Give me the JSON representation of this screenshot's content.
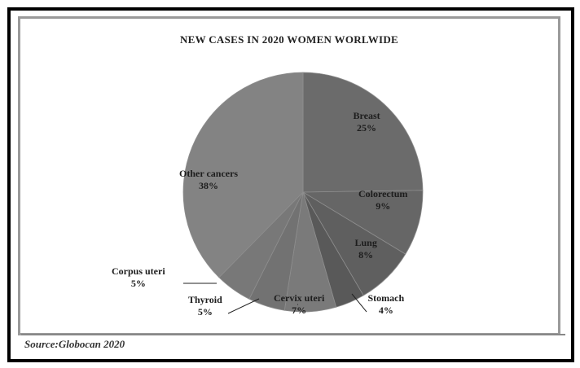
{
  "chart_data": {
    "type": "pie",
    "title": "NEW CASES IN 2020 WOMEN WORLWIDE",
    "slices": [
      {
        "label": "Breast",
        "value_label": "25%",
        "value": 25,
        "color": "#6b6b6b"
      },
      {
        "label": "Colorectum",
        "value_label": "9%",
        "value": 9,
        "color": "#666666"
      },
      {
        "label": "Lung",
        "value_label": "8%",
        "value": 8,
        "color": "#5f5f5f"
      },
      {
        "label": "Stomach",
        "value_label": "4%",
        "value": 4,
        "color": "#595959"
      },
      {
        "label": "Cervix uteri",
        "value_label": "7%",
        "value": 7,
        "color": "#7a7a7a"
      },
      {
        "label": "Thyroid",
        "value_label": "5%",
        "value": 5,
        "color": "#727272"
      },
      {
        "label": "Corpus uteri",
        "value_label": "5%",
        "value": 5,
        "color": "#787878"
      },
      {
        "label": "Other cancers",
        "value_label": "38%",
        "value": 38,
        "color": "#838383"
      }
    ]
  },
  "source": "Source:Globocan 2020"
}
